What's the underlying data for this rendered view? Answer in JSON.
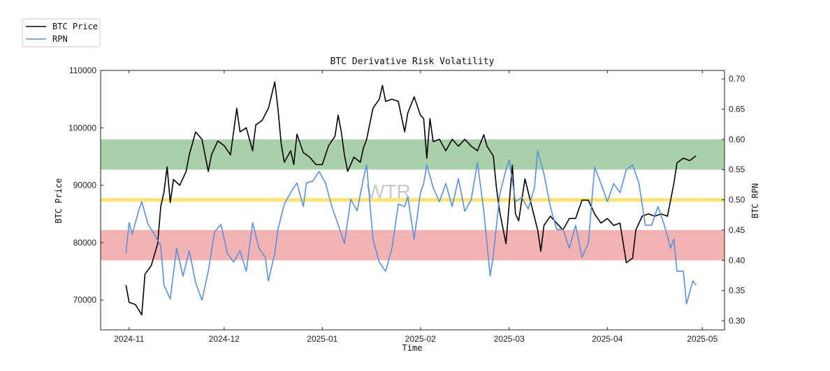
{
  "chart_data": {
    "type": "line",
    "title": "BTC Derivative Risk Volatility",
    "xlabel": "Time",
    "ylabel_left": "BTC Price",
    "ylabel_right": "BTC RPN",
    "watermark": "WTR",
    "xlim": [
      "2024-10-23",
      "2025-05-08"
    ],
    "ylim_left": [
      64800,
      110000
    ],
    "ylim_right": [
      0.285,
      0.714
    ],
    "grid": false,
    "legend_position": "outside-top-left",
    "x_ticks": [
      "2024-11",
      "2024-12",
      "2025-01",
      "2025-02",
      "2025-03",
      "2025-04",
      "2025-05"
    ],
    "y_left_ticks": [
      "70000",
      "80000",
      "90000",
      "100000",
      "110000"
    ],
    "y_right_ticks": [
      "0.30",
      "0.35",
      "0.40",
      "0.45",
      "0.50",
      "0.55",
      "0.60",
      "0.65",
      "0.70"
    ],
    "bands": [
      {
        "axis": "right",
        "from": 0.55,
        "to": 0.6,
        "color": "#a9d0a9"
      },
      {
        "axis": "right",
        "from": 0.497,
        "to": 0.503,
        "color": "#f7e37a"
      },
      {
        "axis": "right",
        "from": 0.4,
        "to": 0.45,
        "color": "#f4b3b3"
      }
    ],
    "series": [
      {
        "name": "BTC Price",
        "axis": "left",
        "color": "#000000",
        "points": [
          [
            "2024-10-31",
            72600
          ],
          [
            "2024-11-01",
            69600
          ],
          [
            "2024-11-03",
            69200
          ],
          [
            "2024-11-05",
            67400
          ],
          [
            "2024-11-06",
            74500
          ],
          [
            "2024-11-08",
            76000
          ],
          [
            "2024-11-10",
            79800
          ],
          [
            "2024-11-11",
            86300
          ],
          [
            "2024-11-12",
            88800
          ],
          [
            "2024-11-13",
            93200
          ],
          [
            "2024-11-14",
            87000
          ],
          [
            "2024-11-15",
            91000
          ],
          [
            "2024-11-17",
            90000
          ],
          [
            "2024-11-19",
            92400
          ],
          [
            "2024-11-20",
            95300
          ],
          [
            "2024-11-22",
            99300
          ],
          [
            "2024-11-24",
            98000
          ],
          [
            "2024-11-26",
            92400
          ],
          [
            "2024-11-27",
            95300
          ],
          [
            "2024-11-29",
            97700
          ],
          [
            "2024-12-01",
            96900
          ],
          [
            "2024-12-03",
            95300
          ],
          [
            "2024-12-05",
            103400
          ],
          [
            "2024-12-06",
            99300
          ],
          [
            "2024-12-08",
            100000
          ],
          [
            "2024-12-10",
            96000
          ],
          [
            "2024-12-11",
            100500
          ],
          [
            "2024-12-13",
            101300
          ],
          [
            "2024-12-15",
            103400
          ],
          [
            "2024-12-17",
            108000
          ],
          [
            "2024-12-18",
            103400
          ],
          [
            "2024-12-19",
            97300
          ],
          [
            "2024-12-20",
            94000
          ],
          [
            "2024-12-22",
            96000
          ],
          [
            "2024-12-23",
            93600
          ],
          [
            "2024-12-24",
            98900
          ],
          [
            "2024-12-26",
            95700
          ],
          [
            "2024-12-28",
            94900
          ],
          [
            "2024-12-30",
            93600
          ],
          [
            "2025-01-01",
            93600
          ],
          [
            "2025-01-03",
            96900
          ],
          [
            "2025-01-05",
            98500
          ],
          [
            "2025-01-06",
            102200
          ],
          [
            "2025-01-07",
            99300
          ],
          [
            "2025-01-08",
            95300
          ],
          [
            "2025-01-09",
            92400
          ],
          [
            "2025-01-11",
            94900
          ],
          [
            "2025-01-13",
            94000
          ],
          [
            "2025-01-14",
            96500
          ],
          [
            "2025-01-15",
            98000
          ],
          [
            "2025-01-17",
            103400
          ],
          [
            "2025-01-19",
            105000
          ],
          [
            "2025-01-20",
            107400
          ],
          [
            "2025-01-21",
            104600
          ],
          [
            "2025-01-23",
            105000
          ],
          [
            "2025-01-25",
            104600
          ],
          [
            "2025-01-27",
            99300
          ],
          [
            "2025-01-28",
            102600
          ],
          [
            "2025-01-30",
            105400
          ],
          [
            "2025-02-01",
            102200
          ],
          [
            "2025-02-02",
            101600
          ],
          [
            "2025-02-03",
            94700
          ],
          [
            "2025-02-04",
            101600
          ],
          [
            "2025-02-05",
            97600
          ],
          [
            "2025-02-07",
            98000
          ],
          [
            "2025-02-09",
            96000
          ],
          [
            "2025-02-11",
            98000
          ],
          [
            "2025-02-13",
            96800
          ],
          [
            "2025-02-15",
            98000
          ],
          [
            "2025-02-17",
            96800
          ],
          [
            "2025-02-19",
            96000
          ],
          [
            "2025-02-21",
            98800
          ],
          [
            "2025-02-22",
            96800
          ],
          [
            "2025-02-24",
            95100
          ],
          [
            "2025-02-25",
            89500
          ],
          [
            "2025-02-26",
            85400
          ],
          [
            "2025-02-28",
            79800
          ],
          [
            "2025-03-02",
            93500
          ],
          [
            "2025-03-03",
            85000
          ],
          [
            "2025-03-04",
            83800
          ],
          [
            "2025-03-06",
            91100
          ],
          [
            "2025-03-08",
            86600
          ],
          [
            "2025-03-10",
            82200
          ],
          [
            "2025-03-11",
            78500
          ],
          [
            "2025-03-12",
            83000
          ],
          [
            "2025-03-14",
            84600
          ],
          [
            "2025-03-16",
            83400
          ],
          [
            "2025-03-18",
            82200
          ],
          [
            "2025-03-20",
            84200
          ],
          [
            "2025-03-22",
            84200
          ],
          [
            "2025-03-24",
            87400
          ],
          [
            "2025-03-26",
            87400
          ],
          [
            "2025-03-28",
            85000
          ],
          [
            "2025-03-30",
            83400
          ],
          [
            "2025-04-01",
            84200
          ],
          [
            "2025-04-03",
            83000
          ],
          [
            "2025-04-05",
            83400
          ],
          [
            "2025-04-07",
            76500
          ],
          [
            "2025-04-09",
            77300
          ],
          [
            "2025-04-10",
            82200
          ],
          [
            "2025-04-12",
            84600
          ],
          [
            "2025-04-14",
            85000
          ],
          [
            "2025-04-16",
            84600
          ],
          [
            "2025-04-18",
            85000
          ],
          [
            "2025-04-20",
            84600
          ],
          [
            "2025-04-21",
            87400
          ],
          [
            "2025-04-22",
            90300
          ],
          [
            "2025-04-23",
            93900
          ],
          [
            "2025-04-25",
            94700
          ],
          [
            "2025-04-27",
            94300
          ],
          [
            "2025-04-29",
            95100
          ]
        ]
      },
      {
        "name": "RPN",
        "axis": "right",
        "color": "#5b8fe0",
        "points": [
          [
            "2024-10-31",
            0.412
          ],
          [
            "2024-11-01",
            0.462
          ],
          [
            "2024-11-02",
            0.443
          ],
          [
            "2024-11-04",
            0.482
          ],
          [
            "2024-11-05",
            0.497
          ],
          [
            "2024-11-07",
            0.459
          ],
          [
            "2024-11-09",
            0.443
          ],
          [
            "2024-11-11",
            0.424
          ],
          [
            "2024-11-12",
            0.359
          ],
          [
            "2024-11-14",
            0.336
          ],
          [
            "2024-11-16",
            0.42
          ],
          [
            "2024-11-18",
            0.374
          ],
          [
            "2024-11-20",
            0.416
          ],
          [
            "2024-11-22",
            0.363
          ],
          [
            "2024-11-24",
            0.334
          ],
          [
            "2024-11-26",
            0.382
          ],
          [
            "2024-11-28",
            0.447
          ],
          [
            "2024-11-30",
            0.459
          ],
          [
            "2024-12-02",
            0.412
          ],
          [
            "2024-12-04",
            0.397
          ],
          [
            "2024-12-06",
            0.416
          ],
          [
            "2024-12-08",
            0.382
          ],
          [
            "2024-12-10",
            0.462
          ],
          [
            "2024-12-12",
            0.42
          ],
          [
            "2024-12-14",
            0.405
          ],
          [
            "2024-12-15",
            0.366
          ],
          [
            "2024-12-17",
            0.412
          ],
          [
            "2024-12-18",
            0.451
          ],
          [
            "2024-12-20",
            0.493
          ],
          [
            "2024-12-22",
            0.512
          ],
          [
            "2024-12-24",
            0.528
          ],
          [
            "2024-12-26",
            0.489
          ],
          [
            "2024-12-27",
            0.528
          ],
          [
            "2024-12-29",
            0.531
          ],
          [
            "2024-12-31",
            0.547
          ],
          [
            "2025-01-02",
            0.528
          ],
          [
            "2025-01-04",
            0.489
          ],
          [
            "2025-01-06",
            0.459
          ],
          [
            "2025-01-08",
            0.428
          ],
          [
            "2025-01-10",
            0.501
          ],
          [
            "2025-01-12",
            0.482
          ],
          [
            "2025-01-14",
            0.535
          ],
          [
            "2025-01-15",
            0.558
          ],
          [
            "2025-01-17",
            0.435
          ],
          [
            "2025-01-19",
            0.397
          ],
          [
            "2025-01-21",
            0.382
          ],
          [
            "2025-01-23",
            0.42
          ],
          [
            "2025-01-25",
            0.493
          ],
          [
            "2025-01-27",
            0.489
          ],
          [
            "2025-01-28",
            0.505
          ],
          [
            "2025-01-30",
            0.435
          ],
          [
            "2025-02-01",
            0.512
          ],
          [
            "2025-02-02",
            0.527
          ],
          [
            "2025-02-03",
            0.558
          ],
          [
            "2025-02-05",
            0.52
          ],
          [
            "2025-02-07",
            0.497
          ],
          [
            "2025-02-09",
            0.527
          ],
          [
            "2025-02-11",
            0.489
          ],
          [
            "2025-02-13",
            0.535
          ],
          [
            "2025-02-15",
            0.481
          ],
          [
            "2025-02-17",
            0.5
          ],
          [
            "2025-02-19",
            0.562
          ],
          [
            "2025-02-21",
            0.481
          ],
          [
            "2025-02-23",
            0.374
          ],
          [
            "2025-02-24",
            0.408
          ],
          [
            "2025-02-26",
            0.508
          ],
          [
            "2025-02-28",
            0.55
          ],
          [
            "2025-03-01",
            0.566
          ],
          [
            "2025-03-03",
            0.497
          ],
          [
            "2025-03-05",
            0.504
          ],
          [
            "2025-03-07",
            0.485
          ],
          [
            "2025-03-09",
            0.52
          ],
          [
            "2025-03-10",
            0.581
          ],
          [
            "2025-03-12",
            0.543
          ],
          [
            "2025-03-14",
            0.489
          ],
          [
            "2025-03-16",
            0.451
          ],
          [
            "2025-03-18",
            0.451
          ],
          [
            "2025-03-20",
            0.42
          ],
          [
            "2025-03-22",
            0.458
          ],
          [
            "2025-03-24",
            0.405
          ],
          [
            "2025-03-26",
            0.428
          ],
          [
            "2025-03-28",
            0.554
          ],
          [
            "2025-03-30",
            0.527
          ],
          [
            "2025-04-01",
            0.497
          ],
          [
            "2025-04-03",
            0.527
          ],
          [
            "2025-04-05",
            0.512
          ],
          [
            "2025-04-07",
            0.55
          ],
          [
            "2025-04-09",
            0.558
          ],
          [
            "2025-04-11",
            0.527
          ],
          [
            "2025-04-13",
            0.458
          ],
          [
            "2025-04-15",
            0.458
          ],
          [
            "2025-04-17",
            0.489
          ],
          [
            "2025-04-19",
            0.458
          ],
          [
            "2025-04-21",
            0.42
          ],
          [
            "2025-04-22",
            0.435
          ],
          [
            "2025-04-23",
            0.382
          ],
          [
            "2025-04-25",
            0.382
          ],
          [
            "2025-04-26",
            0.328
          ],
          [
            "2025-04-28",
            0.366
          ],
          [
            "2025-04-29",
            0.359
          ]
        ]
      }
    ]
  }
}
